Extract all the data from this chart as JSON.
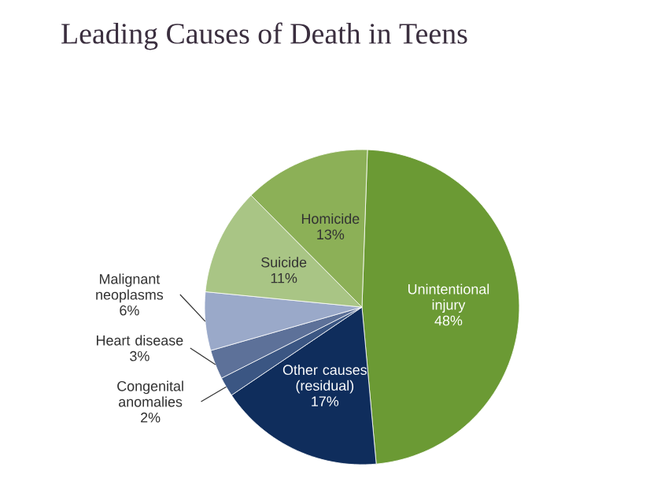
{
  "chart_data": {
    "type": "pie",
    "title": "Leading Causes of Death in Teens",
    "categories": [
      "Unintentional injury",
      "Other causes (residual)",
      "Congenital anomalies",
      "Heart disease",
      "Malignant neoplasms",
      "Suicide",
      "Homicide"
    ],
    "values": [
      48,
      17,
      2,
      3,
      6,
      11,
      13
    ],
    "value_labels": [
      "48%",
      "17%",
      "2%",
      "3%",
      "6%",
      "11%",
      "13%"
    ],
    "colors": [
      "#6b9a34",
      "#0f2d5c",
      "#3b5683",
      "#5d7199",
      "#9aa9c9",
      "#a9c585",
      "#8cb057"
    ]
  }
}
